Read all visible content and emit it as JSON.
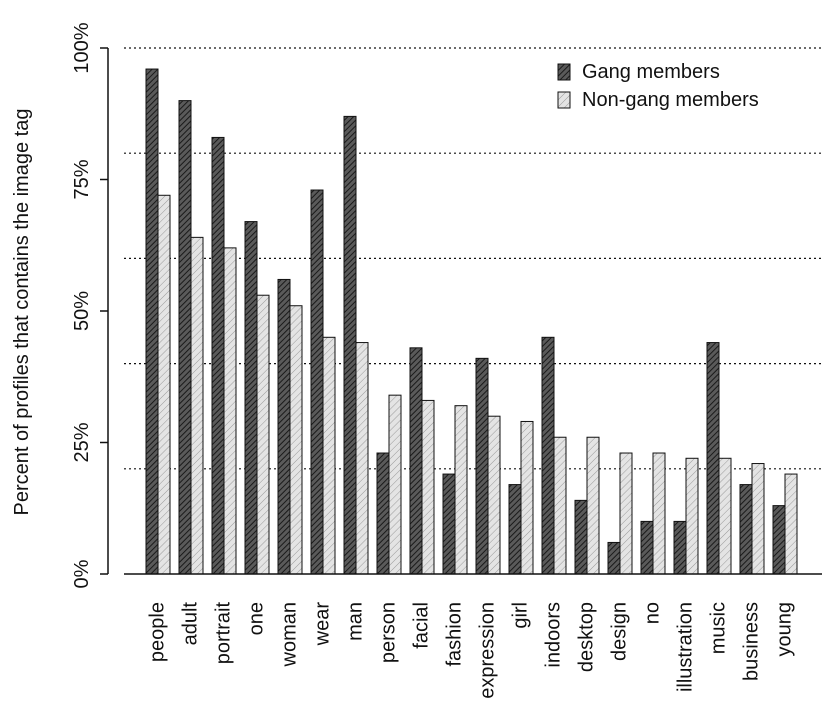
{
  "chart_data": {
    "type": "bar",
    "title": "",
    "xlabel": "",
    "ylabel": "Percent of profiles that contains the image tag",
    "ylim": [
      0,
      100
    ],
    "yticks": [
      0,
      25,
      50,
      75,
      100
    ],
    "ytick_labels": [
      "0%",
      "25%",
      "50%",
      "75%",
      "100%"
    ],
    "gridlines": [
      20,
      40,
      60,
      80,
      100
    ],
    "grid": "dotted horizontal",
    "legend_position": "top-right",
    "categories": [
      "people",
      "adult",
      "portrait",
      "one",
      "woman",
      "wear",
      "man",
      "person",
      "facial",
      "fashion",
      "expression",
      "girl",
      "indoors",
      "desktop",
      "design",
      "no",
      "illustration",
      "music",
      "business",
      "young"
    ],
    "series": [
      {
        "name": "Gang members",
        "pattern": "dense-hatch",
        "color": "#555555",
        "values": [
          96,
          90,
          83,
          67,
          56,
          73,
          87,
          23,
          43,
          19,
          41,
          17,
          45,
          14,
          6,
          10,
          10,
          44,
          17,
          13
        ]
      },
      {
        "name": "Non-gang members",
        "pattern": "light-hatch",
        "color": "#d6d6d6",
        "values": [
          72,
          64,
          62,
          53,
          51,
          45,
          44,
          34,
          33,
          32,
          30,
          29,
          26,
          26,
          23,
          23,
          22,
          22,
          21,
          19
        ]
      }
    ]
  }
}
